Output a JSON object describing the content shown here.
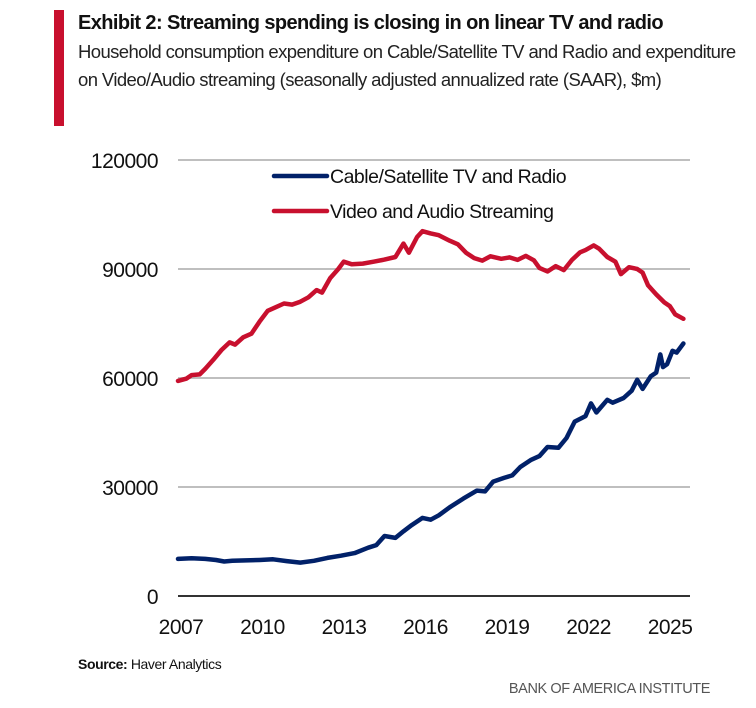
{
  "header": {
    "title": "Exhibit 2: Streaming spending is closing in on linear TV and radio",
    "subtitle": "Household consumption expenditure on Cable/Satellite TV and Radio and expenditure on Video/Audio streaming (seasonally adjusted annualized rate (SAAR), $m)"
  },
  "footer": {
    "source_label": "Source:",
    "source_text": "Haver Analytics",
    "brand": "BANK OF AMERICA INSTITUTE"
  },
  "colors": {
    "accent": "#c8102e",
    "cable_series": "#012169",
    "streaming_series": "#c8102e",
    "gridline": "#bfbfbf",
    "axis": "#333333"
  },
  "chart_data": {
    "type": "line",
    "title": "Exhibit 2: Streaming spending is closing in on linear TV and radio",
    "subtitle": "Household consumption expenditure on Cable/Satellite TV and Radio and expenditure on Video/Audio streaming (seasonally adjusted annualized rate (SAAR), $m)",
    "xlabel": "",
    "ylabel": "",
    "xlim": [
      2007,
      2025.6
    ],
    "ylim": [
      0,
      120000
    ],
    "x_ticks": [
      "2007",
      "2010",
      "2013",
      "2016",
      "2019",
      "2022",
      "2025"
    ],
    "x_tick_values": [
      2007,
      2010,
      2013,
      2016,
      2019,
      2022,
      2025
    ],
    "y_ticks": [
      "0",
      "30000",
      "60000",
      "90000",
      "120000"
    ],
    "y_tick_values": [
      0,
      30000,
      60000,
      90000,
      120000
    ],
    "grid": "horizontal",
    "legend_position": "top-center",
    "series": [
      {
        "name": "Cable/Satellite TV and Radio",
        "color": "#012169",
        "points": [
          [
            2007.0,
            10200
          ],
          [
            2007.5,
            10400
          ],
          [
            2008.0,
            10200
          ],
          [
            2008.4,
            9900
          ],
          [
            2008.7,
            9500
          ],
          [
            2009.0,
            9700
          ],
          [
            2009.5,
            9800
          ],
          [
            2010.0,
            9900
          ],
          [
            2010.5,
            10100
          ],
          [
            2011.0,
            9600
          ],
          [
            2011.5,
            9200
          ],
          [
            2012.0,
            9700
          ],
          [
            2012.5,
            10500
          ],
          [
            2013.0,
            11100
          ],
          [
            2013.5,
            11800
          ],
          [
            2014.0,
            13300
          ],
          [
            2014.3,
            14000
          ],
          [
            2014.6,
            16500
          ],
          [
            2015.0,
            16000
          ],
          [
            2015.3,
            17800
          ],
          [
            2015.6,
            19500
          ],
          [
            2016.0,
            21500
          ],
          [
            2016.3,
            21000
          ],
          [
            2016.6,
            22200
          ],
          [
            2017.0,
            24400
          ],
          [
            2017.5,
            26800
          ],
          [
            2018.0,
            29000
          ],
          [
            2018.3,
            28800
          ],
          [
            2018.6,
            31500
          ],
          [
            2019.0,
            32500
          ],
          [
            2019.3,
            33200
          ],
          [
            2019.6,
            35500
          ],
          [
            2020.0,
            37500
          ],
          [
            2020.3,
            38500
          ],
          [
            2020.6,
            41000
          ],
          [
            2021.0,
            40800
          ],
          [
            2021.3,
            43500
          ],
          [
            2021.6,
            48000
          ],
          [
            2022.0,
            49500
          ],
          [
            2022.2,
            53000
          ],
          [
            2022.4,
            50500
          ],
          [
            2022.8,
            54000
          ],
          [
            2023.0,
            53200
          ],
          [
            2023.4,
            54500
          ],
          [
            2023.7,
            56500
          ],
          [
            2023.9,
            59500
          ],
          [
            2024.1,
            57000
          ],
          [
            2024.4,
            60500
          ],
          [
            2024.6,
            61500
          ],
          [
            2024.75,
            66500
          ],
          [
            2024.85,
            63000
          ],
          [
            2025.0,
            63800
          ],
          [
            2025.2,
            67500
          ],
          [
            2025.35,
            67000
          ],
          [
            2025.6,
            69500
          ]
        ]
      },
      {
        "name": "Video and Audio Streaming",
        "color": "#c8102e",
        "points": [
          [
            2007.0,
            59200
          ],
          [
            2007.3,
            59800
          ],
          [
            2007.5,
            60800
          ],
          [
            2007.8,
            61000
          ],
          [
            2008.0,
            62500
          ],
          [
            2008.3,
            65000
          ],
          [
            2008.6,
            67700
          ],
          [
            2008.9,
            69800
          ],
          [
            2009.1,
            69200
          ],
          [
            2009.4,
            71200
          ],
          [
            2009.7,
            72200
          ],
          [
            2010.0,
            75500
          ],
          [
            2010.3,
            78500
          ],
          [
            2010.6,
            79500
          ],
          [
            2010.9,
            80500
          ],
          [
            2011.2,
            80200
          ],
          [
            2011.5,
            81000
          ],
          [
            2011.8,
            82200
          ],
          [
            2012.1,
            84200
          ],
          [
            2012.3,
            83500
          ],
          [
            2012.6,
            87500
          ],
          [
            2012.9,
            90000
          ],
          [
            2013.1,
            92000
          ],
          [
            2013.4,
            91300
          ],
          [
            2013.8,
            91500
          ],
          [
            2014.2,
            92000
          ],
          [
            2014.6,
            92600
          ],
          [
            2015.0,
            93300
          ],
          [
            2015.3,
            97000
          ],
          [
            2015.5,
            94500
          ],
          [
            2015.8,
            98800
          ],
          [
            2016.0,
            100400
          ],
          [
            2016.3,
            99800
          ],
          [
            2016.6,
            99300
          ],
          [
            2017.0,
            97800
          ],
          [
            2017.3,
            96800
          ],
          [
            2017.6,
            94500
          ],
          [
            2017.9,
            93000
          ],
          [
            2018.2,
            92300
          ],
          [
            2018.5,
            93500
          ],
          [
            2018.9,
            92800
          ],
          [
            2019.2,
            93200
          ],
          [
            2019.5,
            92500
          ],
          [
            2019.8,
            93600
          ],
          [
            2020.1,
            92400
          ],
          [
            2020.3,
            90300
          ],
          [
            2020.6,
            89300
          ],
          [
            2020.9,
            90800
          ],
          [
            2021.2,
            89700
          ],
          [
            2021.5,
            92500
          ],
          [
            2021.8,
            94600
          ],
          [
            2022.0,
            95200
          ],
          [
            2022.3,
            96500
          ],
          [
            2022.5,
            95600
          ],
          [
            2022.8,
            93300
          ],
          [
            2023.1,
            92000
          ],
          [
            2023.3,
            88600
          ],
          [
            2023.6,
            90500
          ],
          [
            2023.9,
            90000
          ],
          [
            2024.1,
            89000
          ],
          [
            2024.3,
            85500
          ],
          [
            2024.6,
            83000
          ],
          [
            2024.9,
            80800
          ],
          [
            2025.1,
            79800
          ],
          [
            2025.3,
            77500
          ],
          [
            2025.6,
            76300
          ]
        ]
      }
    ]
  }
}
